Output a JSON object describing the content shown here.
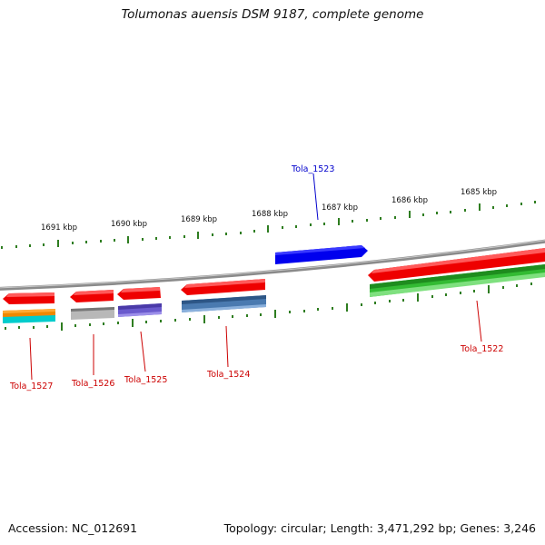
{
  "title": "Tolumonas auensis DSM 9187, complete genome",
  "footer": {
    "accession": "Accession: NC_012691",
    "summary": "Topology: circular; Length: 3,471,292 bp; Genes: 3,246"
  },
  "scale_labels": [
    "1691 kbp",
    "1690 kbp",
    "1689 kbp",
    "1688 kbp",
    "1687 kbp",
    "1686 kbp",
    "1685 kbp"
  ],
  "genes": [
    {
      "id": "Tola_1527",
      "label_color": "#cc0000"
    },
    {
      "id": "Tola_1526",
      "label_color": "#cc0000"
    },
    {
      "id": "Tola_1525",
      "label_color": "#cc0000"
    },
    {
      "id": "Tola_1524",
      "label_color": "#cc0000"
    },
    {
      "id": "Tola_1523",
      "label_color": "#0000cc"
    },
    {
      "id": "Tola_1522",
      "label_color": "#cc0000"
    }
  ],
  "colors": {
    "backbone": "#8a8a8a",
    "tick": "#2e7d20",
    "cds": "#ff0000",
    "highlight_cds": "#0000ff"
  }
}
